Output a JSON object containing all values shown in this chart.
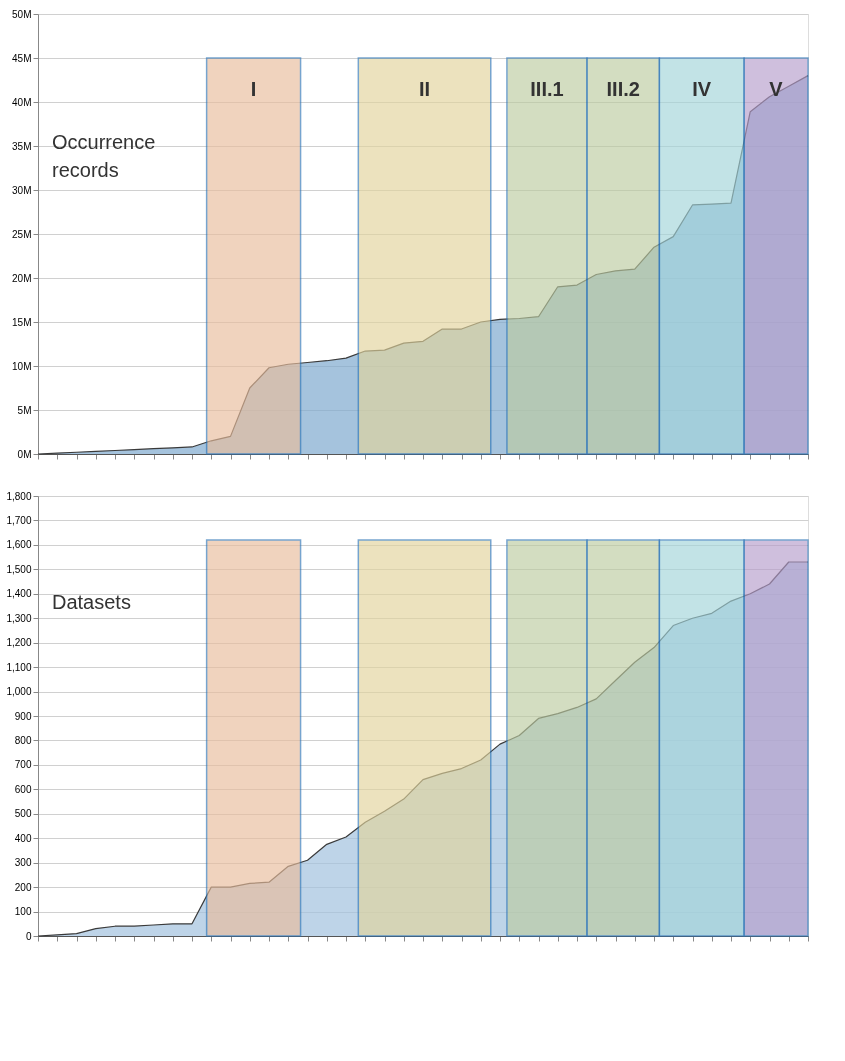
{
  "chart_data": [
    {
      "type": "area",
      "annotations": [
        "Occurrence records",
        "I",
        "II",
        "III.1",
        "III.2",
        "IV",
        "V"
      ],
      "categories": [
        null,
        null,
        null,
        null,
        null,
        null,
        null,
        null,
        null,
        null,
        null,
        null,
        null,
        null,
        null,
        null,
        null,
        null,
        null,
        null,
        null,
        null,
        null,
        null,
        null,
        null,
        null,
        null,
        null,
        null,
        null,
        null,
        null,
        null,
        null,
        null,
        null,
        null,
        null,
        null,
        null
      ],
      "ylim": [
        0,
        50
      ],
      "yticks": [
        {
          "value": 0,
          "label": "0M"
        },
        {
          "value": 5,
          "label": "5M"
        },
        {
          "value": 10,
          "label": "10M"
        },
        {
          "value": 15,
          "label": "15M"
        },
        {
          "value": 20,
          "label": "20M"
        },
        {
          "value": 25,
          "label": "25M"
        },
        {
          "value": 30,
          "label": "30M"
        },
        {
          "value": 35,
          "label": "35M"
        },
        {
          "value": 40,
          "label": "40M"
        },
        {
          "value": 45,
          "label": "45M"
        },
        {
          "value": 50,
          "label": "50M"
        }
      ],
      "series": [
        {
          "color": "#7fa9cf",
          "values": [
            0,
            0.1,
            0.2,
            0.3,
            0.4,
            0.5,
            0.6,
            0.7,
            0.8,
            1.5,
            2.0,
            7.5,
            9.8,
            10.2,
            10.4,
            10.6,
            10.9,
            11.7,
            11.8,
            12.6,
            12.8,
            14.2,
            14.2,
            15.0,
            15.3,
            15.4,
            15.6,
            19.0,
            19.2,
            20.4,
            20.8,
            21.0,
            23.5,
            24.7,
            28.3,
            28.4,
            28.5,
            38.9,
            40.6,
            41.8,
            43.0
          ]
        }
      ],
      "grid": "y",
      "tick_labels": "y",
      "legend": false
    },
    {
      "type": "area",
      "annotations": [
        "Datasets"
      ],
      "categories": [
        null,
        null,
        null,
        null,
        null,
        null,
        null,
        null,
        null,
        null,
        null,
        null,
        null,
        null,
        null,
        null,
        null,
        null,
        null,
        null,
        null,
        null,
        null,
        null,
        null,
        null,
        null,
        null,
        null,
        null,
        null,
        null,
        null,
        null,
        null,
        null,
        null,
        null,
        null,
        null,
        null
      ],
      "ylim": [
        0,
        1800
      ],
      "yticks": [
        0,
        100,
        200,
        300,
        400,
        500,
        600,
        700,
        800,
        900,
        {
          "value": 1000,
          "label": "1,000"
        },
        {
          "value": 1100,
          "label": "1,100"
        },
        {
          "value": 1200,
          "label": "1,200"
        },
        {
          "value": 1300,
          "label": "1,300"
        },
        {
          "value": 1400,
          "label": "1,400"
        },
        {
          "value": 1500,
          "label": "1,500"
        },
        {
          "value": 1600,
          "label": "1,600"
        },
        {
          "value": 1700,
          "label": "1,700"
        },
        {
          "value": 1800,
          "label": "1,800"
        }
      ],
      "series": [
        {
          "color": "#a3c2de",
          "values": [
            0,
            5,
            10,
            30,
            40,
            40,
            45,
            50,
            50,
            200,
            200,
            215,
            220,
            285,
            310,
            375,
            405,
            465,
            510,
            560,
            640,
            665,
            685,
            720,
            785,
            820,
            890,
            910,
            935,
            970,
            1045,
            1120,
            1180,
            1270,
            1300,
            1320,
            1370,
            1400,
            1440,
            1530,
            1530
          ]
        }
      ],
      "grid": "y",
      "tick_labels": "y",
      "legend": false
    }
  ]
}
